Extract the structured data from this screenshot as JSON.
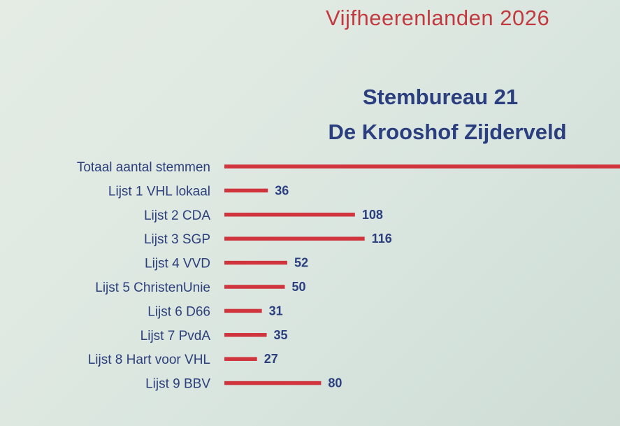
{
  "header": {
    "title": "Vijfheerenlanden 2026"
  },
  "colors": {
    "bar": "#d0343d",
    "title": "#2b3f7f",
    "header": "#c23a3f"
  },
  "chart_data": {
    "type": "bar",
    "orientation": "horizontal",
    "title_lines": [
      "Stembureau 21",
      "De Krooshof Zijderveld"
    ],
    "categories": [
      "Totaal aantal stemmen",
      "Lijst 1 VHL lokaal",
      "Lijst 2 CDA",
      "Lijst 3 SGP",
      "Lijst 4 VVD",
      "Lijst 5 ChristenUnie",
      "Lijst 6 D66",
      "Lijst 7 PvdA",
      "Lijst 8 Hart voor VHL",
      "Lijst 9 BBV"
    ],
    "values": [
      null,
      36,
      108,
      116,
      52,
      50,
      31,
      35,
      27,
      80
    ],
    "value_labels": [
      "",
      "36",
      "108",
      "116",
      "52",
      "50",
      "31",
      "35",
      "27",
      "80"
    ],
    "series": [
      {
        "values": [
          null,
          36,
          108,
          116,
          52,
          50,
          31,
          35,
          27,
          80
        ]
      }
    ],
    "xlim": [
      0,
      116
    ],
    "grid": false,
    "legend": "none"
  }
}
